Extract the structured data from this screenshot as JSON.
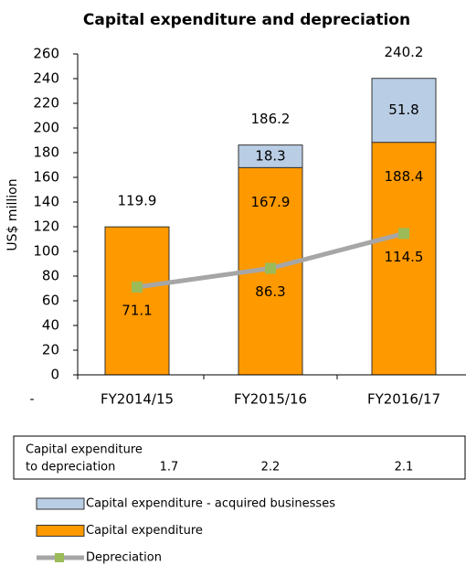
{
  "chart_data": {
    "type": "stacked_bar_line",
    "title": "Capital expenditure and depreciation",
    "ylabel": "US$ million",
    "x_axis_note": "-",
    "categories": [
      "FY2014/15",
      "FY2015/16",
      "FY2016/17"
    ],
    "series": [
      {
        "name": "Capital expenditure - acquired businesses",
        "color": "#b9cde5",
        "type": "bar",
        "values": [
          null,
          18.3,
          51.8
        ]
      },
      {
        "name": "Capital expenditure",
        "color": "#ff9900",
        "type": "bar",
        "values": [
          119.9,
          167.9,
          188.4
        ]
      },
      {
        "name": "Depreciation",
        "color": "#a6a6a6",
        "marker_color": "#9bbb59",
        "type": "line",
        "values": [
          71.1,
          86.3,
          114.5
        ]
      }
    ],
    "totals": [
      119.9,
      186.2,
      240.2
    ],
    "ylim": [
      0,
      260
    ],
    "yticks": [
      0,
      20,
      40,
      60,
      80,
      100,
      120,
      140,
      160,
      180,
      200,
      220,
      240,
      260
    ],
    "ratio_table": {
      "label": [
        "Capital expenditure",
        "to depreciation"
      ],
      "values": [
        1.7,
        2.2,
        2.1
      ]
    }
  }
}
